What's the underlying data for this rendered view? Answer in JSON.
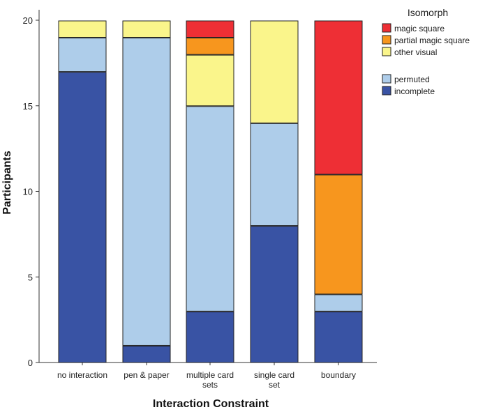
{
  "chart_data": {
    "type": "bar",
    "stacked": true,
    "categories": [
      "no interaction",
      "pen & paper",
      "multiple card sets",
      "single card set",
      "boundary"
    ],
    "series": [
      {
        "name": "incomplete",
        "color": "#3953A4",
        "values": [
          17,
          1,
          3,
          8,
          3
        ]
      },
      {
        "name": "permuted",
        "color": "#AECDEA",
        "values": [
          2,
          18,
          12,
          6,
          1
        ]
      },
      {
        "name": "other visual",
        "color": "#FAF58B",
        "values": [
          1,
          1,
          3,
          6,
          0
        ]
      },
      {
        "name": "partial magic square",
        "color": "#F7961E",
        "values": [
          0,
          0,
          1,
          0,
          7
        ]
      },
      {
        "name": "magic square",
        "color": "#EE2F35",
        "values": [
          0,
          0,
          1,
          0,
          9
        ]
      }
    ],
    "xlabel": "Interaction Constraint",
    "ylabel": "Participants",
    "ylim": [
      0,
      20
    ],
    "yticks": [
      0,
      5,
      10,
      15,
      20
    ],
    "grid": false,
    "legend": {
      "title": "Isomorph",
      "placement": "top-right",
      "groups": [
        [
          "magic square",
          "partial magic square",
          "other visual"
        ],
        [
          "permuted",
          "incomplete"
        ]
      ]
    }
  }
}
